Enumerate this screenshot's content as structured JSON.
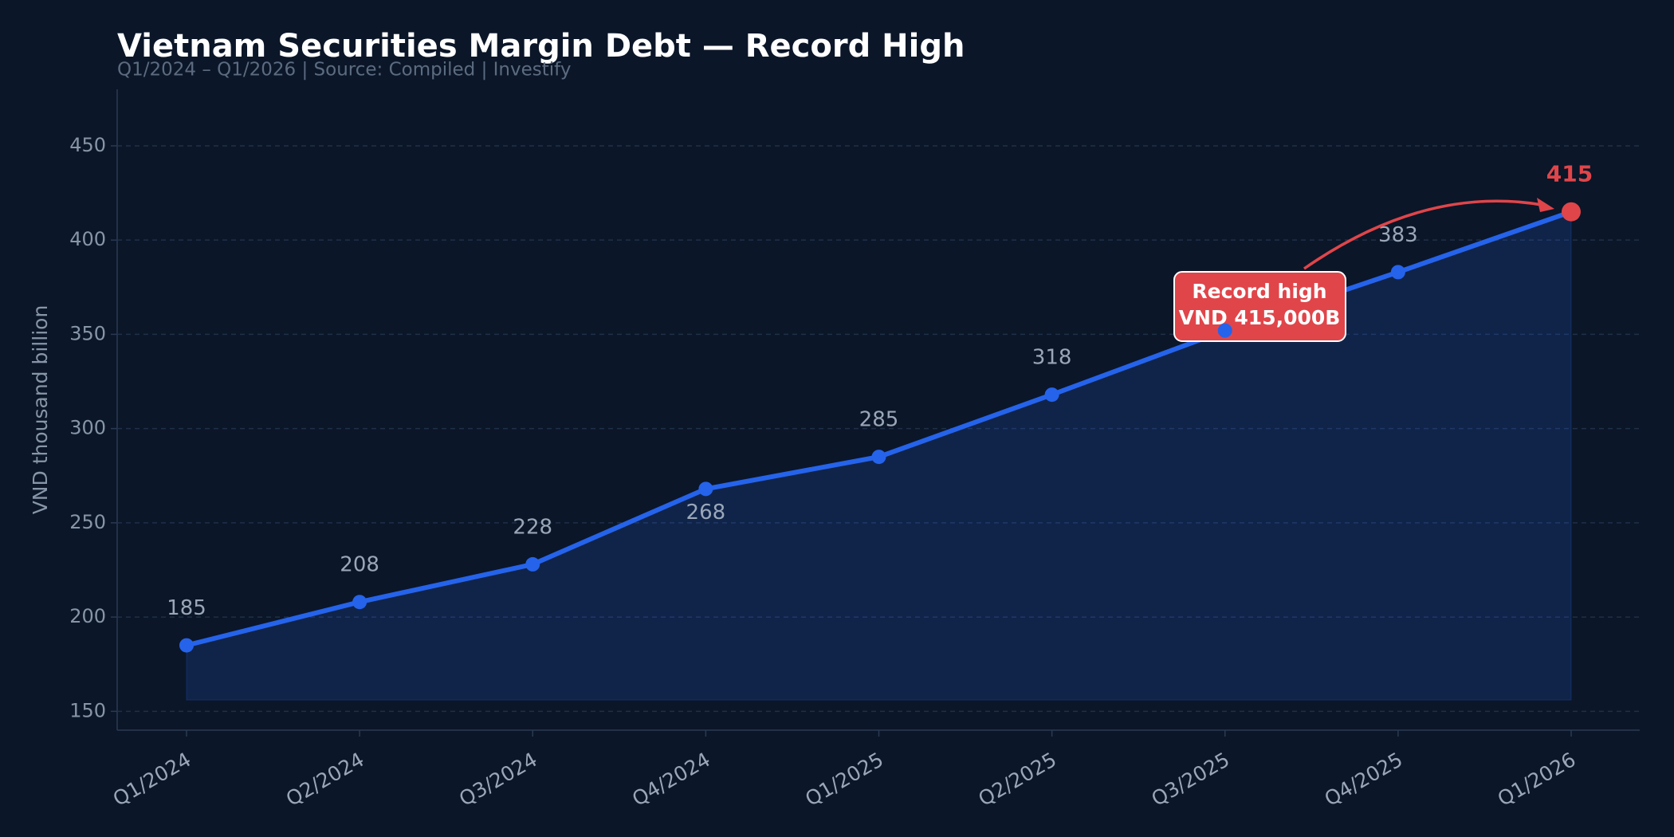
{
  "chart_data": {
    "type": "line",
    "title": "Vietnam Securities Margin Debt — Record High",
    "subtitle": "Q1/2024 – Q1/2026  |  Source: Compiled  |  Investify",
    "y_label": "VND thousand billion",
    "categories": [
      "Q1/2024",
      "Q2/2024",
      "Q3/2024",
      "Q4/2024",
      "Q1/2025",
      "Q2/2025",
      "Q3/2025",
      "Q4/2025",
      "Q1/2026"
    ],
    "series": [
      {
        "name": "Margin debt",
        "color": "#2563eb",
        "highlight_color": "#e0454a",
        "values": [
          185,
          208,
          228,
          268,
          285,
          318,
          352,
          383,
          415
        ]
      }
    ],
    "annotation": {
      "lines": [
        "Record high",
        "VND 415,000B"
      ],
      "color": "#e0454a"
    },
    "ylim": [
      140,
      480
    ],
    "yticks": [
      150,
      200,
      250,
      300,
      350,
      400,
      450
    ],
    "grid": true
  }
}
